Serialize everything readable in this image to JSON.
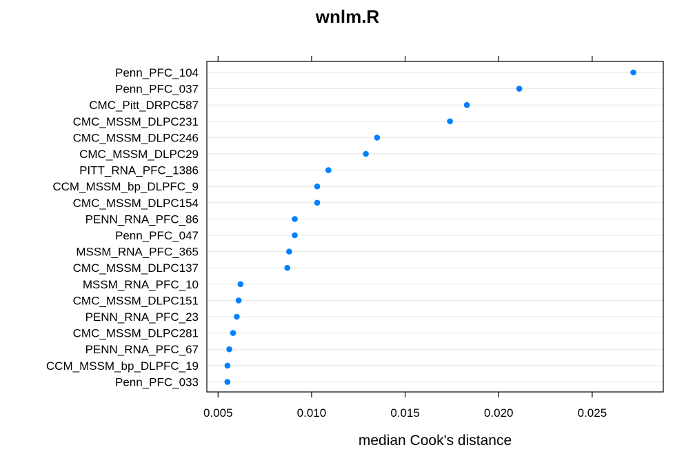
{
  "chart_data": {
    "type": "dotplot",
    "title": "wnlm.R",
    "xlabel": "median Cook's distance",
    "ylabel": "",
    "xlim": [
      0.0044,
      0.0288
    ],
    "xticks": [
      0.005,
      0.01,
      0.015,
      0.02,
      0.025
    ],
    "xtick_labels": [
      "0.005",
      "0.010",
      "0.015",
      "0.020",
      "0.025"
    ],
    "grid": "horizontal",
    "point_color": "#0080ff",
    "categories": [
      "Penn_PFC_104",
      "Penn_PFC_037",
      "CMC_Pitt_DRPC587",
      "CMC_MSSM_DLPC231",
      "CMC_MSSM_DLPC246",
      "CMC_MSSM_DLPC29",
      "PITT_RNA_PFC_1386",
      "CCM_MSSM_bp_DLPFC_9",
      "CMC_MSSM_DLPC154",
      "PENN_RNA_PFC_86",
      "Penn_PFC_047",
      "MSSM_RNA_PFC_365",
      "CMC_MSSM_DLPC137",
      "MSSM_RNA_PFC_10",
      "CMC_MSSM_DLPC151",
      "PENN_RNA_PFC_23",
      "CMC_MSSM_DLPC281",
      "PENN_RNA_PFC_67",
      "CCM_MSSM_bp_DLPFC_19",
      "Penn_PFC_033"
    ],
    "values": [
      0.0272,
      0.0211,
      0.0183,
      0.0174,
      0.0135,
      0.0129,
      0.0109,
      0.0103,
      0.0103,
      0.0091,
      0.0091,
      0.0088,
      0.0087,
      0.0062,
      0.0061,
      0.006,
      0.0058,
      0.0056,
      0.0055,
      0.0055
    ]
  }
}
